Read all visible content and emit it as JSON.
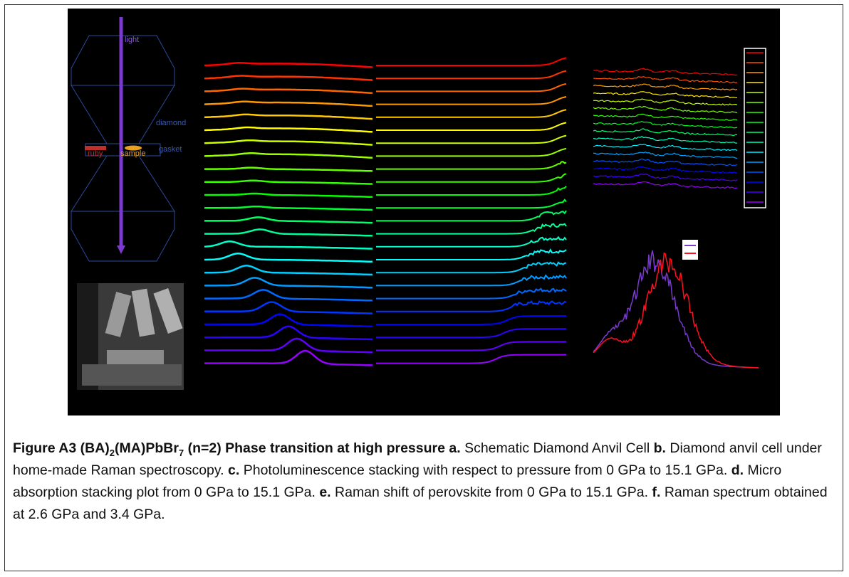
{
  "figure": {
    "schematic": {
      "light": "light",
      "diamond": "diamond",
      "gasket": "gasket",
      "ruby": "ruby",
      "sample": "sample"
    }
  },
  "caption": {
    "runs": [
      "Figure A3 (BA)",
      "2",
      "(MA)PbBr",
      "7",
      "(n=2) Phase transition at high pressure a.",
      "Schematic Diamond Anvil Cell",
      "b.",
      "Diamond anvil cell under home-made Raman spectroscopy.",
      "c.",
      "Photoluminescence stacking with respect to pressure from 0 GPa to 15.1 GPa.",
      "d.",
      "Micro absorption stacking plot from 0 GPa to 15.1 GPa.",
      "e.",
      "Raman shift of perovskite from 0 GPa to 15.1 GPa.",
      "f.",
      "Raman spectrum obtained at 2.6 GPa and 3.4 GPa."
    ]
  }
}
